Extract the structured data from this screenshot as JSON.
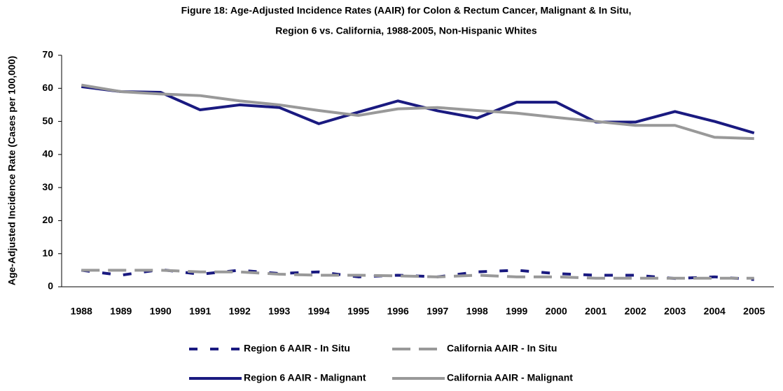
{
  "chart_data": {
    "type": "line",
    "title": "Figure 18:  Age-Adjusted Incidence Rates (AAIR) for Colon & Rectum Cancer, Malignant & In Situ,",
    "subtitle": "Region 6 vs. California, 1988-2005, Non-Hispanic Whites",
    "y_label": "Age-Adjusted Incidence Rate (Cases per 100,000)",
    "categories": [
      "1988",
      "1989",
      "1990",
      "1991",
      "1992",
      "1993",
      "1994",
      "1995",
      "1996",
      "1997",
      "1998",
      "1999",
      "2000",
      "2001",
      "2002",
      "2003",
      "2004",
      "2005"
    ],
    "series": [
      {
        "name": "Region 6 AAIR - In Situ",
        "color": "#1a1a80",
        "dashed": true,
        "values": [
          5,
          3.5,
          5.2,
          3.8,
          5,
          4,
          4.5,
          3,
          3.5,
          3,
          4.5,
          5,
          4,
          3.5,
          3.5,
          2.5,
          3,
          2.2
        ]
      },
      {
        "name": "California AAIR - In Situ",
        "color": "#999999",
        "dashed": true,
        "values": [
          5,
          5,
          5,
          4.5,
          4.5,
          3.8,
          3.5,
          3.5,
          3.3,
          3,
          3.5,
          3,
          3,
          2.6,
          2.6,
          2.6,
          2.6,
          2.6
        ]
      },
      {
        "name": "Region 6 AAIR - Malignant",
        "color": "#1a1a80",
        "dashed": false,
        "values": [
          60.5,
          59,
          58.8,
          53.5,
          55,
          54.2,
          49.3,
          52.8,
          56.2,
          53.2,
          51,
          55.8,
          55.8,
          49.8,
          49.8,
          53,
          50,
          46.5
        ]
      },
      {
        "name": "California AAIR - Malignant",
        "color": "#999999",
        "dashed": false,
        "values": [
          61,
          59,
          58.3,
          57.8,
          56.2,
          55,
          53.3,
          51.8,
          53.8,
          54.2,
          53.3,
          52.5,
          51.2,
          50,
          48.8,
          48.8,
          45.2,
          44.8
        ]
      }
    ],
    "ylim": [
      0,
      70
    ],
    "yticks": [
      0,
      10,
      20,
      30,
      40,
      50,
      60,
      70
    ],
    "grid": false,
    "legend": "bottom"
  }
}
